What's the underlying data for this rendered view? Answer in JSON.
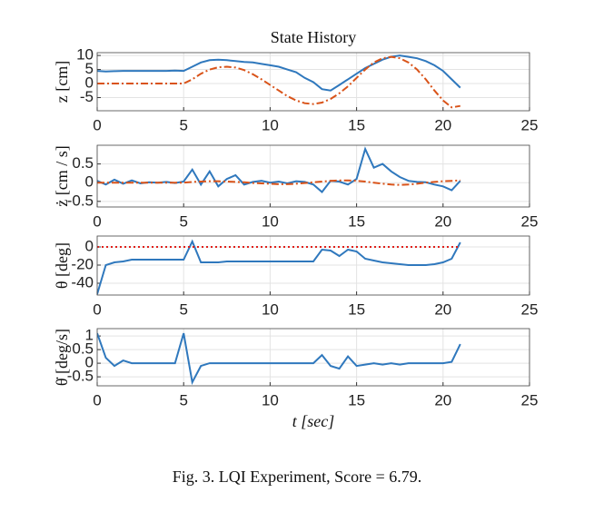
{
  "chart_data": [
    {
      "type": "line",
      "title": "State History",
      "ylabel": "z [cm]",
      "x": [
        0,
        0.5,
        1,
        1.5,
        2,
        2.5,
        3,
        3.5,
        4,
        4.5,
        5,
        5.5,
        6,
        6.5,
        7,
        7.5,
        8,
        8.5,
        9,
        9.5,
        10,
        10.5,
        11,
        11.5,
        12,
        12.5,
        13,
        13.5,
        14,
        14.5,
        15,
        15.5,
        16,
        16.5,
        17,
        17.5,
        18,
        18.5,
        19,
        19.5,
        20,
        20.5,
        21
      ],
      "series": [
        {
          "color": "#2f78bd",
          "style": "solid",
          "values": [
            4.5,
            4.3,
            4.4,
            4.5,
            4.5,
            4.5,
            4.5,
            4.5,
            4.5,
            4.6,
            4.5,
            6,
            7.5,
            8.3,
            8.5,
            8.3,
            8,
            7.7,
            7.5,
            7,
            6.5,
            6,
            5,
            4,
            2,
            0.5,
            -2,
            -2.5,
            -0.5,
            1.5,
            3.5,
            5.5,
            7,
            8.5,
            9.5,
            10,
            9.5,
            9,
            8,
            6.5,
            4.5,
            1.5,
            -1.5
          ]
        },
        {
          "color": "#d95319",
          "style": "dashdot",
          "values": [
            0,
            0,
            0,
            0,
            0,
            0,
            0,
            0,
            0,
            0,
            0,
            1.5,
            3.5,
            5,
            5.8,
            6,
            5.7,
            4.8,
            3.3,
            1.5,
            -0.5,
            -2.5,
            -4.5,
            -6,
            -7,
            -7.3,
            -6.8,
            -5.5,
            -3.5,
            -1,
            2,
            5,
            7.5,
            9,
            9.5,
            9,
            7.5,
            5,
            1.5,
            -2.5,
            -6,
            -8.5,
            -8
          ]
        }
      ],
      "xlim": [
        0,
        25
      ],
      "xticks": [
        0,
        5,
        10,
        15,
        20,
        25
      ],
      "ylim": [
        -9.7,
        11
      ],
      "yticks": [
        -5,
        0,
        5,
        10
      ],
      "grid": true
    },
    {
      "type": "line",
      "ylabel": "ż [cm / s]",
      "x": [
        0,
        0.5,
        1,
        1.5,
        2,
        2.5,
        3,
        3.5,
        4,
        4.5,
        5,
        5.5,
        6,
        6.5,
        7,
        7.5,
        8,
        8.5,
        9,
        9.5,
        10,
        10.5,
        11,
        11.5,
        12,
        12.5,
        13,
        13.5,
        14,
        14.5,
        15,
        15.5,
        16,
        16.5,
        17,
        17.5,
        18,
        18.5,
        19,
        19.5,
        20,
        20.5,
        21
      ],
      "series": [
        {
          "color": "#2f78bd",
          "style": "solid",
          "values": [
            0.05,
            -0.05,
            0.08,
            -0.03,
            0.06,
            -0.02,
            0.01,
            0,
            0.02,
            -0.01,
            0.03,
            0.35,
            -0.05,
            0.3,
            -0.1,
            0.1,
            0.2,
            -0.05,
            0.02,
            0.05,
            0,
            0.03,
            -0.02,
            0.04,
            0.02,
            -0.05,
            -0.25,
            0.05,
            0.03,
            -0.05,
            0.1,
            0.9,
            0.4,
            0.5,
            0.3,
            0.15,
            0.05,
            0.02,
            0.01,
            -0.05,
            -0.1,
            -0.2,
            0.05
          ]
        },
        {
          "color": "#d95319",
          "style": "dashdot",
          "values": [
            0,
            0,
            0,
            0,
            0,
            0,
            0,
            0,
            0,
            0,
            0,
            0.02,
            0.03,
            0.04,
            0.04,
            0.03,
            0.02,
            0.01,
            -0.01,
            -0.02,
            -0.03,
            -0.04,
            -0.04,
            -0.03,
            -0.01,
            0.01,
            0.03,
            0.05,
            0.06,
            0.06,
            0.05,
            0.03,
            0,
            -0.03,
            -0.05,
            -0.06,
            -0.05,
            -0.03,
            0,
            0.02,
            0.04,
            0.05,
            0.06
          ]
        }
      ],
      "xlim": [
        0,
        25
      ],
      "xticks": [
        0,
        5,
        10,
        15,
        20,
        25
      ],
      "ylim": [
        -0.65,
        1
      ],
      "yticks": [
        -0.5,
        0,
        0.5
      ],
      "grid": true
    },
    {
      "type": "line",
      "ylabel": "θ [deg]",
      "x": [
        0,
        0.5,
        1,
        1.5,
        2,
        2.5,
        3,
        3.5,
        4,
        4.5,
        5,
        5.5,
        6,
        6.5,
        7,
        7.5,
        8,
        8.5,
        9,
        9.5,
        10,
        10.5,
        11,
        11.5,
        12,
        12.5,
        13,
        13.5,
        14,
        14.5,
        15,
        15.5,
        16,
        16.5,
        17,
        17.5,
        18,
        18.5,
        19,
        19.5,
        20,
        20.5,
        21
      ],
      "series": [
        {
          "color": "#2f78bd",
          "style": "solid",
          "values": [
            -52,
            -20,
            -17,
            -16,
            -14,
            -14,
            -14,
            -14,
            -14,
            -14,
            -14,
            6,
            -17,
            -17,
            -17,
            -16,
            -16,
            -16,
            -16,
            -16,
            -16,
            -16,
            -16,
            -16,
            -16,
            -16,
            -3,
            -4,
            -10,
            -3,
            -5,
            -13,
            -15,
            -17,
            -18,
            -19,
            -20,
            -20,
            -20,
            -19,
            -17,
            -13,
            5
          ]
        },
        {
          "color": "#e0201b",
          "style": "dotted",
          "values": [
            0,
            0,
            0,
            0,
            0,
            0,
            0,
            0,
            0,
            0,
            0,
            0,
            0,
            0,
            0,
            0,
            0,
            0,
            0,
            0,
            0,
            0,
            0,
            0,
            0,
            0,
            0,
            0,
            0,
            0,
            0,
            0,
            0,
            0,
            0,
            0,
            0,
            0,
            0,
            0,
            0,
            0,
            0
          ]
        }
      ],
      "xlim": [
        0,
        25
      ],
      "xticks": [
        0,
        5,
        10,
        15,
        20,
        25
      ],
      "ylim": [
        -53,
        12
      ],
      "yticks": [
        -40,
        -20,
        0
      ],
      "grid": true
    },
    {
      "type": "line",
      "ylabel": "θ̇ [deg/s]",
      "xlabel": "t [sec]",
      "x": [
        0,
        0.5,
        1,
        1.5,
        2,
        2.5,
        3,
        3.5,
        4,
        4.5,
        5,
        5.5,
        6,
        6.5,
        7,
        7.5,
        8,
        8.5,
        9,
        9.5,
        10,
        10.5,
        11,
        11.5,
        12,
        12.5,
        13,
        13.5,
        14,
        14.5,
        15,
        15.5,
        16,
        16.5,
        17,
        17.5,
        18,
        18.5,
        19,
        19.5,
        20,
        20.5,
        21
      ],
      "series": [
        {
          "color": "#2f78bd",
          "style": "solid",
          "values": [
            1.1,
            0.2,
            -0.1,
            0.1,
            0,
            0,
            0,
            0,
            0,
            0,
            1.1,
            -0.7,
            -0.1,
            0,
            0,
            0,
            0,
            0,
            0,
            0,
            0,
            0,
            0,
            0,
            0,
            0,
            0.3,
            -0.1,
            -0.2,
            0.25,
            -0.1,
            -0.05,
            0,
            -0.05,
            0,
            -0.05,
            0,
            0,
            0,
            0,
            0,
            0.05,
            0.7
          ]
        }
      ],
      "xlim": [
        0,
        25
      ],
      "xticks": [
        0,
        5,
        10,
        15,
        20,
        25
      ],
      "ylim": [
        -0.83,
        1.27
      ],
      "yticks": [
        -0.5,
        0,
        0.5,
        1
      ],
      "grid": true
    }
  ],
  "caption": "Fig. 3.  LQI Experiment, Score = 6.79."
}
